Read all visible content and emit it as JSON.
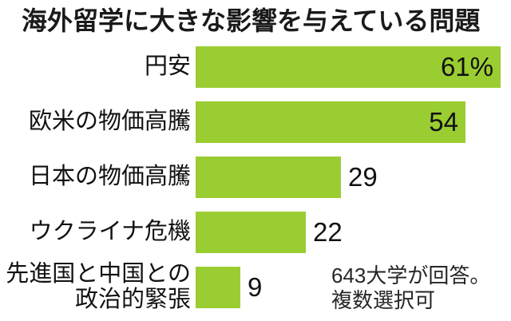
{
  "title": "海外留学に大きな影響を与えている問題",
  "note": "643大学が回答。\n複数選択可",
  "accent_color": "#9ACD32",
  "chart_data": {
    "type": "bar",
    "orientation": "horizontal",
    "title": "海外留学に大きな影響を与えている問題",
    "categories": [
      "円安",
      "欧米の物価高騰",
      "日本の物価高騰",
      "ウクライナ危機",
      "先進国と中国との政治的緊張"
    ],
    "values": [
      61,
      54,
      29,
      22,
      9
    ],
    "unit": "%",
    "xlim": [
      0,
      61
    ],
    "grid": false,
    "legend": "none",
    "bar_color": "#9ACD32",
    "annotation": "643大学が回答。複数選択可",
    "rows": [
      {
        "label": "円安",
        "value": 61,
        "display": "61%"
      },
      {
        "label": "欧米の物価高騰",
        "value": 54,
        "display": "54"
      },
      {
        "label": "日本の物価高騰",
        "value": 29,
        "display": "29"
      },
      {
        "label": "ウクライナ危機",
        "value": 22,
        "display": "22"
      },
      {
        "label": "先進国と中国との\n政治的緊張",
        "value": 9,
        "display": "9"
      }
    ]
  }
}
